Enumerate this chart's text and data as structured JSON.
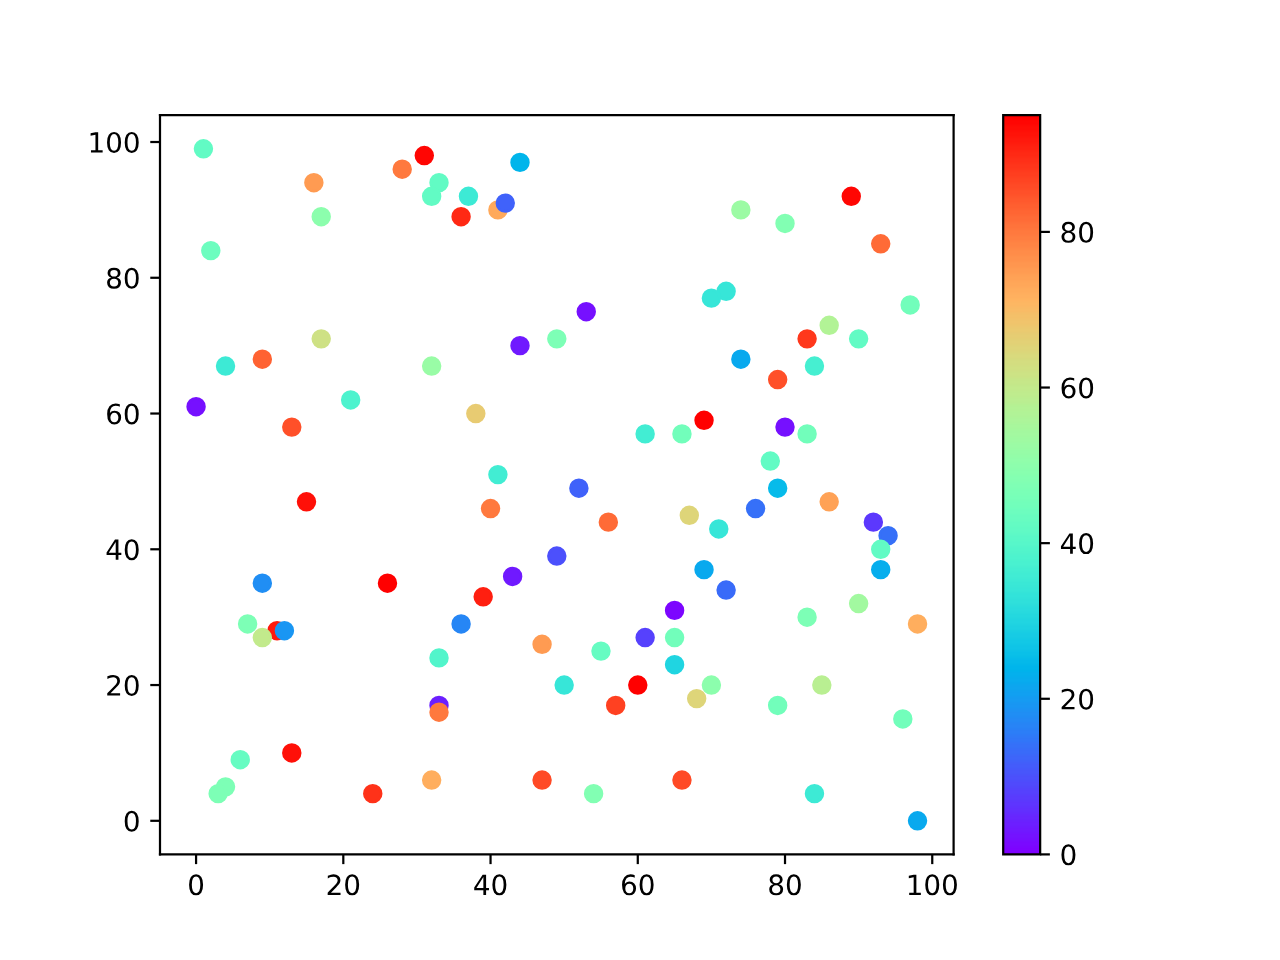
{
  "chart_data": {
    "type": "scatter",
    "x": [
      1,
      31,
      28,
      16,
      44,
      33,
      32,
      37,
      36,
      41,
      42,
      17,
      2,
      17,
      44,
      49,
      4,
      9,
      32,
      0,
      21,
      13,
      38,
      41,
      89,
      74,
      80,
      93,
      72,
      70,
      53,
      97,
      86,
      83,
      90,
      74,
      84,
      79,
      69,
      61,
      66,
      80,
      83,
      78,
      52,
      79,
      15,
      40,
      49,
      9,
      26,
      43,
      39,
      36,
      7,
      11,
      12,
      9,
      33,
      47,
      50,
      33,
      33,
      6,
      13,
      4,
      3,
      24,
      32,
      47,
      56,
      67,
      71,
      76,
      86,
      92,
      94,
      93,
      93,
      69,
      72,
      65,
      61,
      65,
      65,
      55,
      60,
      57,
      68,
      70,
      79,
      83,
      90,
      85,
      98,
      96,
      54,
      66,
      84,
      98
    ],
    "values": [
      99,
      98,
      96,
      94,
      97,
      94,
      92,
      92,
      89,
      90,
      91,
      89,
      84,
      71,
      70,
      71,
      67,
      68,
      67,
      61,
      62,
      58,
      60,
      51,
      92,
      90,
      88,
      85,
      78,
      77,
      75,
      76,
      73,
      71,
      71,
      68,
      67,
      65,
      59,
      57,
      57,
      58,
      57,
      53,
      49,
      49,
      47,
      46,
      39,
      35,
      35,
      36,
      33,
      29,
      29,
      28,
      28,
      27,
      24,
      26,
      20,
      17,
      16,
      9,
      10,
      5,
      4,
      4,
      6,
      6,
      44,
      45,
      43,
      46,
      47,
      44,
      42,
      40,
      37,
      37,
      34,
      31,
      27,
      27,
      23,
      25,
      20,
      17,
      18,
      20,
      17,
      30,
      32,
      20,
      29,
      15,
      4,
      6,
      4,
      0
    ],
    "cvalues": [
      42,
      94,
      80,
      75,
      24,
      42,
      42,
      35,
      90,
      73,
      12,
      50,
      44,
      62,
      3,
      47,
      35,
      83,
      52,
      2,
      38,
      85,
      67,
      36,
      94,
      53,
      48,
      82,
      34,
      34,
      2,
      45,
      57,
      88,
      42,
      22,
      37,
      85,
      95,
      36,
      45,
      2,
      45,
      42,
      12,
      25,
      93,
      80,
      10,
      18,
      95,
      3,
      91,
      17,
      47,
      92,
      19,
      60,
      39,
      75,
      34,
      4,
      80,
      43,
      93,
      47,
      47,
      89,
      72,
      86,
      82,
      65,
      34,
      14,
      74,
      7,
      14,
      42,
      23,
      22,
      13,
      1,
      8,
      45,
      30,
      43,
      95,
      87,
      65,
      50,
      45,
      47,
      54,
      58,
      72,
      45,
      48,
      86,
      35,
      22
    ],
    "marker": "circle",
    "xlim": [
      -4.9,
      102.9
    ],
    "ylim": [
      -4.95,
      103.95
    ],
    "xticks": [
      0,
      20,
      40,
      60,
      80,
      100
    ],
    "yticks": [
      0,
      20,
      40,
      60,
      80,
      100
    ],
    "clim": [
      0,
      95
    ],
    "cticks": [
      0,
      20,
      40,
      60,
      80
    ],
    "grid": false
  }
}
